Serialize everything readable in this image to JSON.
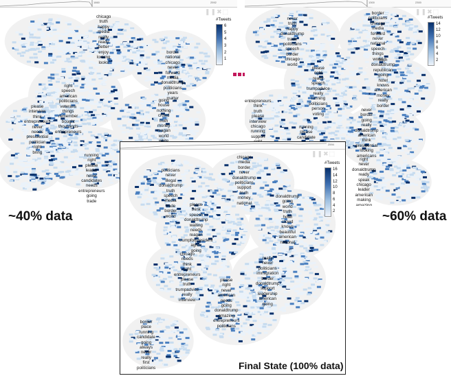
{
  "panels": {
    "left": {
      "timeline_start": "1860",
      "timeline_end": "2592",
      "legend_title": "#Tweets",
      "legend_ticks": [
        "6",
        "5",
        "4",
        "3",
        "2",
        "1"
      ],
      "caption": "~40% data",
      "clusters": [
        [
          "chicago",
          "truth",
          "happy",
          "media",
          "really",
          "ready",
          "better",
          "enjoy",
          "looking",
          "looks"
        ],
        [
          "border",
          "national",
          "chicago",
          "never",
          "forward",
          "media",
          "donaldtrump",
          "politicians",
          "years",
          "matter"
        ],
        [
          "right",
          "speech",
          "american",
          "politicians",
          "veterans",
          "things",
          "remember",
          "bought",
          "thousands",
          "entrepreneurs"
        ],
        [
          "please",
          "interview",
          "think",
          "entrepreneurs",
          "never",
          "needs",
          "presidential",
          "politician",
          "right",
          "bring"
        ],
        [
          "going",
          "house",
          "nothing",
          "crowd",
          "truth",
          "money",
          "reagan",
          "world",
          "white"
        ],
        [
          "running",
          "right",
          "please",
          "leader",
          "never",
          "candidates",
          "needs",
          "entrepreneurs",
          "going",
          "trade"
        ]
      ]
    },
    "right": {
      "timeline_start": "1300",
      "timeline_end": "2300",
      "legend_title": "#Tweets",
      "legend_ticks": [
        "14",
        "12",
        "10",
        "8",
        "6",
        "4",
        "2"
      ],
      "caption": "~60% data",
      "clusters": [
        [
          "never",
          "truth",
          "happy",
          "donaldtrump",
          "trade",
          "politicians",
          "speech",
          "border",
          "chicago",
          "world"
        ],
        [
          "border",
          "politicians",
          "chicago",
          "media",
          "forward",
          "never",
          "national",
          "speech",
          "things",
          "world"
        ],
        [
          "please",
          "right",
          "ready",
          "speech",
          "trumpadvice",
          "really",
          "running",
          "politicians",
          "person",
          "voting"
        ],
        [
          "truth",
          "donaldtrump",
          "republican",
          "going",
          "hotel",
          "knows",
          "american",
          "money",
          "really",
          "border"
        ],
        [
          "entrepreneurs",
          "think",
          "truth",
          "please",
          "interview",
          "chicago",
          "running",
          "support",
          "right"
        ],
        [
          "running",
          "please",
          "candidate"
        ],
        [
          "never",
          "border",
          "going",
          "really",
          "donaldtrump",
          "american",
          "think",
          "presidential",
          "looking",
          "americans"
        ],
        [
          "right",
          "never",
          "donaldtrump",
          "ready",
          "speak",
          "chicago",
          "leader",
          "american",
          "making",
          "amazing"
        ]
      ]
    },
    "final": {
      "timeline_end": "2594",
      "legend_title": "#Tweets",
      "legend_ticks": [
        "16",
        "14",
        "12",
        "10",
        "8",
        "6",
        "4",
        "2"
      ],
      "caption": "Final State (100% data)",
      "clusters": [
        [
          "politicians",
          "never",
          "illegal",
          "donaldtrump",
          "truth",
          "speech",
          "media",
          "trade",
          "border",
          "world"
        ],
        [
          "chicago",
          "media",
          "border",
          "never",
          "donaldtrump",
          "politicians",
          "support",
          "truth",
          "money",
          "national"
        ],
        [
          "please",
          "think",
          "speech",
          "donaldtrump",
          "waiting",
          "needs",
          "reagan",
          "trumpforpresident",
          "agree",
          "going"
        ],
        [
          "donaldtrump",
          "going",
          "world",
          "truth",
          "hotel",
          "crowd",
          "knows",
          "beautiful",
          "american",
          "national"
        ],
        [
          "chicago",
          "needs",
          "think",
          "right",
          "entrepreneurs",
          "please",
          "truth",
          "trumpadvice",
          "really",
          "interview"
        ],
        [
          "really",
          "never",
          "politicians",
          "immigration",
          "border",
          "donaldtrump",
          "support",
          "leadership",
          "american",
          "going"
        ],
        [
          "please",
          "right",
          "never",
          "american",
          "needs",
          "going",
          "donaldtrump",
          "amazing",
          "entrepreneurs",
          "politicians"
        ],
        [
          "border",
          "place",
          "running",
          "candidate",
          "going",
          "always",
          "never",
          "really",
          "first",
          "politicians"
        ]
      ]
    }
  },
  "colors": {
    "darkest": "#08306b",
    "mid": "#4a7fbf",
    "light": "#c6dbef",
    "lightest": "#eaf2fa",
    "region": "#f1f1f1",
    "dots": "#c2185b"
  },
  "icons": [
    "pause-icon",
    "close-icon",
    "export-icon"
  ]
}
